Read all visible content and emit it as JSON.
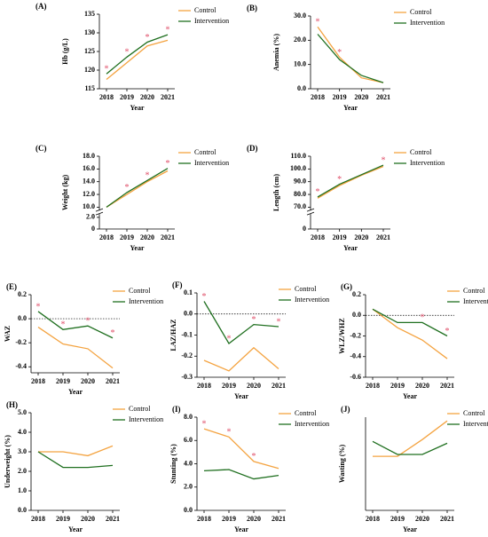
{
  "chart_data": [
    {
      "type": "line",
      "title": "(A)",
      "ylabel": "Hb (g/L)",
      "xlabel": "Year",
      "categories": [
        "2018",
        "2019",
        "2020",
        "2021"
      ],
      "series": [
        {
          "name": "Control",
          "color": "#f4a340",
          "values": [
            117.5,
            122,
            126.5,
            128
          ]
        },
        {
          "name": "Intervention",
          "color": "#1f6f1f",
          "values": [
            119,
            123.5,
            127.5,
            129.5
          ]
        }
      ],
      "ylim": [
        115,
        135
      ],
      "yticks": [
        115,
        120,
        125,
        130,
        135
      ],
      "sig_label": "*",
      "significant": [
        true,
        true,
        true,
        true
      ],
      "legend": "right-top"
    },
    {
      "type": "line",
      "title": "(B)",
      "ylabel": "Anemia (%)",
      "xlabel": "Year",
      "categories": [
        "2018",
        "2019",
        "2020",
        "2021"
      ],
      "series": [
        {
          "name": "Control",
          "color": "#f4a340",
          "values": [
            25.5,
            13,
            4.5,
            2.5
          ]
        },
        {
          "name": "Intervention",
          "color": "#1f6f1f",
          "values": [
            22.5,
            12,
            5.5,
            2.5
          ]
        }
      ],
      "ylim": [
        0,
        30
      ],
      "yticks": [
        {
          "value": 0,
          "label": "0.0"
        },
        {
          "value": 10,
          "label": "10.0"
        },
        {
          "value": 20,
          "label": "20.0"
        },
        {
          "value": 30,
          "label": "30.0"
        }
      ],
      "sig_label": "*",
      "significant": [
        true,
        true,
        false,
        false
      ],
      "legend": "right-top"
    },
    {
      "type": "line",
      "title": "(C)",
      "ylabel": "Weight (kg)",
      "xlabel": "Year",
      "categories": [
        "2018",
        "2019",
        "2020",
        "2021"
      ],
      "series": [
        {
          "name": "Control",
          "color": "#f4a340",
          "values": [
            10.0,
            12.0,
            14.0,
            15.7
          ]
        },
        {
          "name": "Intervention",
          "color": "#1f6f1f",
          "values": [
            10.0,
            12.3,
            14.2,
            16.1
          ]
        }
      ],
      "ylim": [
        0,
        18
      ],
      "ybreak": [
        2,
        10
      ],
      "yticks": [
        0,
        {
          "value": 2,
          "label": "2.0"
        },
        {
          "value": 10,
          "label": "10.0"
        },
        {
          "value": 12,
          "label": "12.0"
        },
        {
          "value": 14,
          "label": "14.0"
        },
        {
          "value": 16,
          "label": "16.0"
        },
        {
          "value": 18,
          "label": "18.0"
        }
      ],
      "sig_label": "*",
      "significant": [
        false,
        true,
        true,
        true
      ],
      "legend": "right-top"
    },
    {
      "type": "line",
      "title": "(D)",
      "ylabel": "Length (cm)",
      "xlabel": "Year",
      "categories": [
        "2018",
        "2019",
        "2020",
        "2021"
      ],
      "series": [
        {
          "name": "Control",
          "color": "#f4a340",
          "values": [
            77,
            87,
            95,
            102
          ]
        },
        {
          "name": "Intervention",
          "color": "#1f6f1f",
          "values": [
            78,
            88,
            95.5,
            103
          ]
        }
      ],
      "ylim": [
        0,
        110
      ],
      "ybreak": [
        0,
        70
      ],
      "yticks": [
        0,
        {
          "value": 70,
          "label": "70.0"
        },
        {
          "value": 80,
          "label": "80.0"
        },
        {
          "value": 90,
          "label": "90.0"
        },
        {
          "value": 100,
          "label": "100.0"
        },
        {
          "value": 110,
          "label": "110.0"
        }
      ],
      "sig_label": "*",
      "significant": [
        true,
        true,
        false,
        true
      ],
      "legend": "right-top"
    },
    {
      "type": "line",
      "title": "(E)",
      "ylabel": "WAZ",
      "xlabel": "Year",
      "categories": [
        "2018",
        "2019",
        "2020",
        "2021"
      ],
      "series": [
        {
          "name": "Control",
          "color": "#f4a340",
          "values": [
            -0.07,
            -0.21,
            -0.25,
            -0.41
          ]
        },
        {
          "name": "Intervention",
          "color": "#1f6f1f",
          "values": [
            0.06,
            -0.09,
            -0.06,
            -0.16
          ]
        }
      ],
      "ylim": [
        -0.45,
        0.2
      ],
      "yticks": [
        -0.4,
        -0.2,
        {
          "value": 0,
          "label": "0.0"
        },
        0.2
      ],
      "hline": 0,
      "sig_label": "*",
      "significant": [
        true,
        true,
        true,
        true
      ],
      "legend": "right-top"
    },
    {
      "type": "line",
      "title": "(F)",
      "ylabel": "LAZ/HAZ",
      "xlabel": "Year",
      "categories": [
        "2018",
        "2019",
        "2020",
        "2021"
      ],
      "series": [
        {
          "name": "Control",
          "color": "#f4a340",
          "values": [
            -0.22,
            -0.27,
            -0.16,
            -0.26
          ]
        },
        {
          "name": "Intervention",
          "color": "#1f6f1f",
          "values": [
            0.06,
            -0.14,
            -0.05,
            -0.06
          ]
        }
      ],
      "ylim": [
        -0.3,
        0.1
      ],
      "yticks": [
        -0.3,
        -0.2,
        -0.1,
        {
          "value": 0,
          "label": "0.0"
        },
        0.1
      ],
      "hline": 0,
      "sig_label": "*",
      "significant": [
        true,
        true,
        true,
        true
      ],
      "legend": "right-top"
    },
    {
      "type": "line",
      "title": "(G)",
      "ylabel": "WLZ/WHZ",
      "xlabel": "Year",
      "categories": [
        "2018",
        "2019",
        "2020",
        "2021"
      ],
      "series": [
        {
          "name": "Control",
          "color": "#f4a340",
          "values": [
            0.06,
            -0.12,
            -0.24,
            -0.42
          ]
        },
        {
          "name": "Intervention",
          "color": "#1f6f1f",
          "values": [
            0.06,
            -0.07,
            -0.07,
            -0.2
          ]
        }
      ],
      "ylim": [
        -0.6,
        0.2
      ],
      "yticks": [
        -0.6,
        -0.4,
        -0.2,
        {
          "value": 0,
          "label": "0.0"
        },
        0.2
      ],
      "hline": 0,
      "sig_label": "*",
      "significant": [
        false,
        false,
        true,
        true
      ],
      "legend": "right-top"
    },
    {
      "type": "line",
      "title": "(H)",
      "ylabel": "Underweight (%)",
      "xlabel": "Year",
      "categories": [
        "2018",
        "2019",
        "2020",
        "2021"
      ],
      "series": [
        {
          "name": "Control",
          "color": "#f4a340",
          "values": [
            3.0,
            3.0,
            2.8,
            3.3
          ]
        },
        {
          "name": "Intervention",
          "color": "#1f6f1f",
          "values": [
            3.0,
            2.2,
            2.2,
            2.3
          ]
        }
      ],
      "ylim": [
        0,
        5
      ],
      "yticks": [
        {
          "value": 0,
          "label": "0.0"
        },
        {
          "value": 1,
          "label": "1.0"
        },
        {
          "value": 2,
          "label": "2.0"
        },
        {
          "value": 3,
          "label": "3.0"
        },
        {
          "value": 4,
          "label": "4.0"
        },
        {
          "value": 5,
          "label": "5.0"
        }
      ],
      "legend": "right-top"
    },
    {
      "type": "line",
      "title": "(I)",
      "ylabel": "Stunting (%)",
      "xlabel": "Year",
      "categories": [
        "2018",
        "2019",
        "2020",
        "2021"
      ],
      "series": [
        {
          "name": "Control",
          "color": "#f4a340",
          "values": [
            7.0,
            6.3,
            4.2,
            3.6
          ]
        },
        {
          "name": "Intervention",
          "color": "#1f6f1f",
          "values": [
            3.4,
            3.5,
            2.7,
            3.0
          ]
        }
      ],
      "ylim": [
        0,
        8
      ],
      "yticks": [
        {
          "value": 0,
          "label": "0.0"
        },
        {
          "value": 2,
          "label": "2.0"
        },
        {
          "value": 4,
          "label": "4.0"
        },
        {
          "value": 6,
          "label": "6.0"
        },
        {
          "value": 8,
          "label": "8.0"
        }
      ],
      "sig_label": "*",
      "significant": [
        true,
        true,
        true,
        false
      ],
      "legend": "right-top"
    },
    {
      "type": "line",
      "title": "(J)",
      "ylabel": "Wasting (%)",
      "xlabel": "Year",
      "categories": [
        "2018",
        "2019",
        "2020",
        "2021"
      ],
      "series": [
        {
          "name": "Control",
          "color": "#f4a340",
          "values": [
            2.9,
            2.9,
            3.8,
            4.8
          ]
        },
        {
          "name": "Intervention",
          "color": "#1f6f1f",
          "values": [
            3.7,
            3.0,
            3.0,
            3.6
          ]
        }
      ],
      "ylim": [
        0,
        5
      ],
      "legend": "right-top"
    }
  ]
}
